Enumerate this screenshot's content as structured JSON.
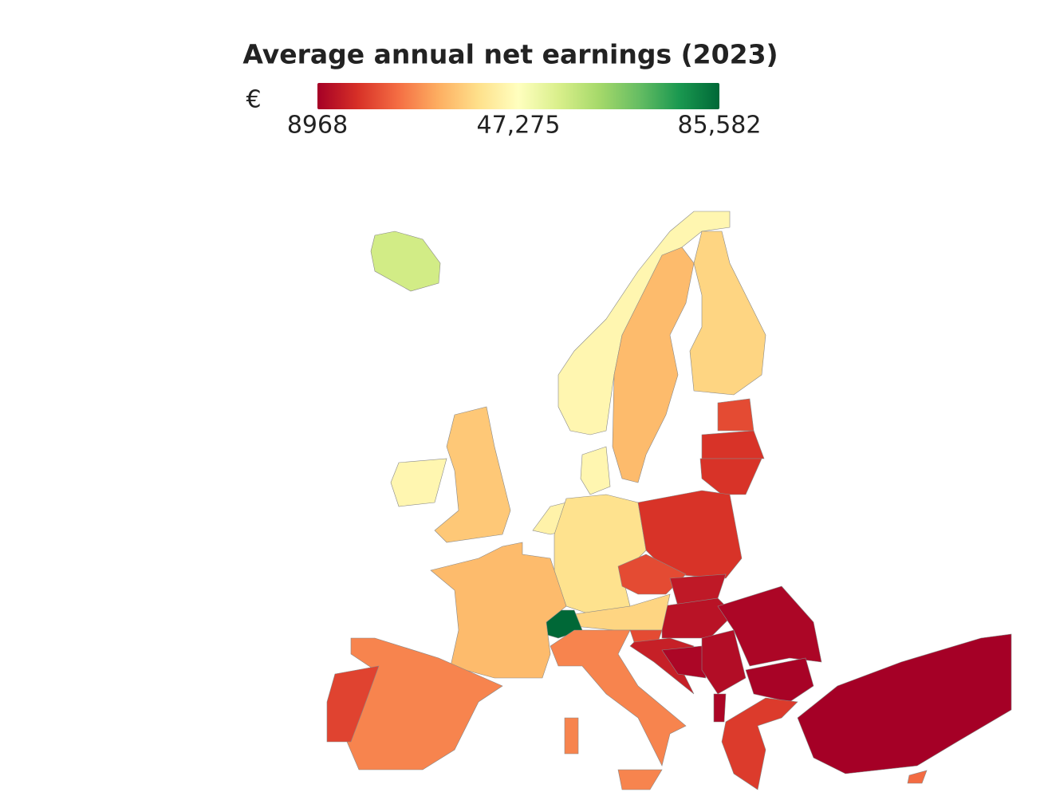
{
  "chart_data": {
    "type": "choropleth",
    "title": "Average annual net earnings (2023)",
    "colorbar": {
      "title": "€",
      "ticks": [
        8968,
        {
          "value": 47275,
          "label": "47,275"
        },
        {
          "value": 85582,
          "label": "85,582"
        }
      ]
    },
    "zlim": [
      8968,
      85582
    ],
    "colorscale": [
      "#a50026",
      "#d73027",
      "#f46d43",
      "#fdae61",
      "#fee08b",
      "#ffffbf",
      "#d9ef8b",
      "#a6d96a",
      "#66bd63",
      "#1a9850",
      "#006837"
    ],
    "values": [
      56000,
      45000,
      34000,
      38000,
      20000,
      17000,
      17000,
      36000,
      45000,
      45000,
      44000,
      40000,
      17000,
      20000,
      13000,
      12000,
      38000,
      85582,
      34000,
      27000,
      19000,
      27000,
      20000,
      14000,
      10000,
      11000,
      10000,
      9500,
      18000,
      8968,
      10000,
      24000
    ]
  }
}
